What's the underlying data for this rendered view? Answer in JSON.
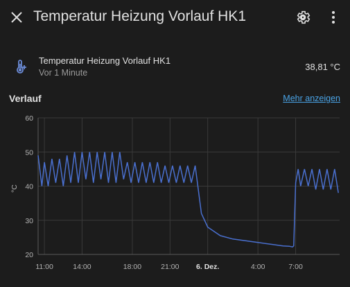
{
  "header": {
    "title": "Temperatur Heizung Vorlauf HK1"
  },
  "entity": {
    "name": "Temperatur Heizung Vorlauf HK1",
    "time_ago": "Vor 1 Minute",
    "value": "38,81 °C"
  },
  "history": {
    "title": "Verlauf",
    "more_link": "Mehr anzeigen"
  },
  "colors": {
    "line": "#4a70d0",
    "background": "#1c1c1c",
    "grid": "#3a3a3a",
    "link": "#4aa3e6"
  },
  "chart_data": {
    "type": "line",
    "ylabel": "°C",
    "ylim": [
      20,
      60
    ],
    "y_ticks": [
      60,
      50,
      40,
      30,
      20
    ],
    "x_ticks": [
      {
        "label": "11:00",
        "hour": 11,
        "bold": false
      },
      {
        "label": "14:00",
        "hour": 14,
        "bold": false
      },
      {
        "label": "18:00",
        "hour": 18,
        "bold": false
      },
      {
        "label": "21:00",
        "hour": 21,
        "bold": false
      },
      {
        "label": "6. Dez.",
        "hour": 24,
        "bold": true
      },
      {
        "label": "4:00",
        "hour": 28,
        "bold": false
      },
      {
        "label": "7:00",
        "hour": 31,
        "bold": false
      }
    ],
    "xlim": [
      10.5,
      34.5
    ],
    "grid": true,
    "series": [
      {
        "x": [
          10.5,
          10.8,
          11.0,
          11.3,
          11.6,
          11.9,
          12.2,
          12.5,
          12.8,
          13.1,
          13.4,
          13.7,
          14.0,
          14.3,
          14.6,
          14.9,
          15.2,
          15.5,
          15.8,
          16.1,
          16.4,
          16.7,
          17.0,
          17.3,
          17.6,
          17.9,
          18.2,
          18.5,
          18.8,
          19.1,
          19.4,
          19.7,
          20.0,
          20.3,
          20.6,
          20.9,
          21.2,
          21.5,
          21.8,
          22.1,
          22.4,
          22.7,
          23.0,
          23.5,
          24.0,
          25.0,
          26.0,
          27.0,
          28.0,
          29.0,
          30.0,
          30.5,
          30.75,
          30.85,
          31.0,
          31.2,
          31.4,
          31.7,
          32.0,
          32.3,
          32.6,
          32.9,
          33.2,
          33.5,
          33.8,
          34.1,
          34.4
        ],
        "y": [
          49,
          40,
          47,
          40,
          48,
          41,
          48,
          40,
          49,
          41,
          50,
          41,
          50,
          42,
          50,
          41,
          50,
          42,
          50,
          41,
          50,
          41,
          50,
          42,
          47,
          41,
          47,
          41,
          47,
          41,
          47,
          41,
          47,
          41,
          46,
          41,
          46,
          41,
          46,
          41,
          46,
          41,
          46,
          32,
          28,
          25.5,
          24.5,
          24.0,
          23.5,
          23.0,
          22.5,
          22.4,
          22.2,
          22.5,
          41,
          45,
          40,
          45,
          40,
          45,
          39,
          45,
          39,
          45,
          39,
          45,
          38
        ]
      }
    ]
  }
}
